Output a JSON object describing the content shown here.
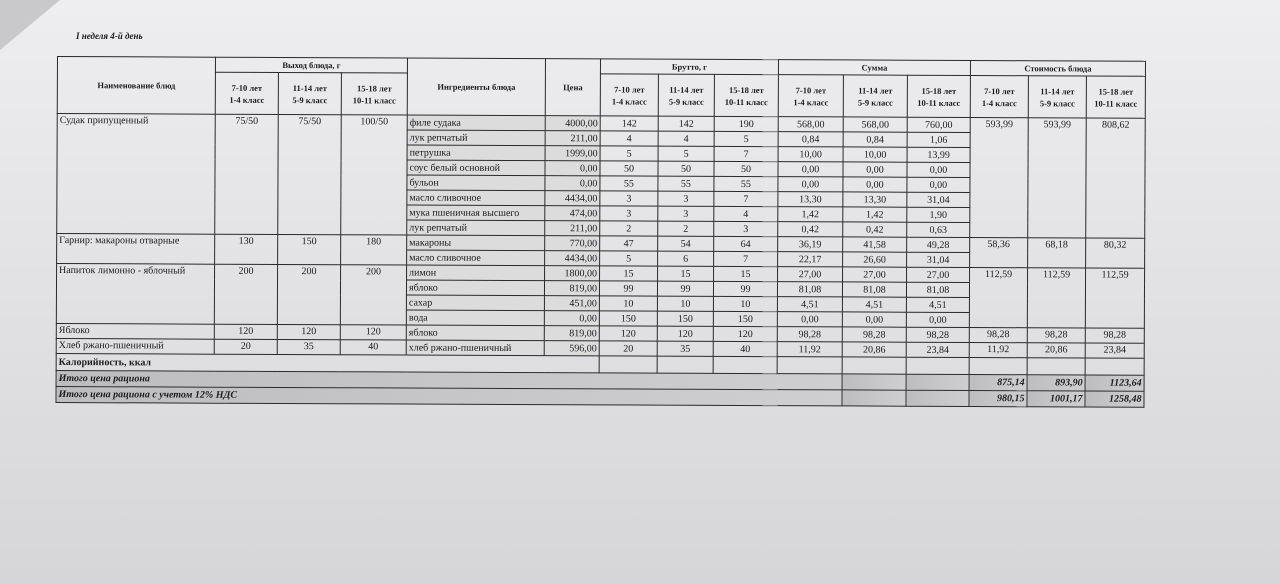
{
  "title": "I неделя 4-й день",
  "headers": {
    "dish_name": "Наименование блюд",
    "output_group": "Выход блюда, г",
    "ingredients": "Ингредиенты блюда",
    "price": "Цена",
    "brutto_group": "Брутто, г",
    "sum_group": "Сумма",
    "cost_group": "Стоимость блюда",
    "age_groups": [
      "7-10 лет\n1-4 класс",
      "11-14 лет\n5-9 класс",
      "15-18 лет\n10-11 класс"
    ]
  },
  "dishes": [
    {
      "name": "Судак припущенный",
      "output": [
        "75/50",
        "75/50",
        "100/50"
      ],
      "cost": [
        "593,99",
        "593,99",
        "808,62"
      ],
      "ingredients": [
        {
          "name": "филе судака",
          "price": "4000,00",
          "brutto": [
            "142",
            "142",
            "190"
          ],
          "sum": [
            "568,00",
            "568,00",
            "760,00"
          ]
        },
        {
          "name": "лук репчатый",
          "price": "211,00",
          "brutto": [
            "4",
            "4",
            "5"
          ],
          "sum": [
            "0,84",
            "0,84",
            "1,06"
          ]
        },
        {
          "name": "петрушка",
          "price": "1999,00",
          "brutto": [
            "5",
            "5",
            "7"
          ],
          "sum": [
            "10,00",
            "10,00",
            "13,99"
          ]
        },
        {
          "name": "соус белый основной",
          "price": "0,00",
          "brutto": [
            "50",
            "50",
            "50"
          ],
          "sum": [
            "0,00",
            "0,00",
            "0,00"
          ]
        },
        {
          "name": "бульон",
          "price": "0,00",
          "brutto": [
            "55",
            "55",
            "55"
          ],
          "sum": [
            "0,00",
            "0,00",
            "0,00"
          ]
        },
        {
          "name": "масло сливочное",
          "price": "4434,00",
          "brutto": [
            "3",
            "3",
            "7"
          ],
          "sum": [
            "13,30",
            "13,30",
            "31,04"
          ]
        },
        {
          "name": "мука пшеничная высшего",
          "price": "474,00",
          "brutto": [
            "3",
            "3",
            "4"
          ],
          "sum": [
            "1,42",
            "1,42",
            "1,90"
          ]
        },
        {
          "name": "лук репчатый",
          "price": "211,00",
          "brutto": [
            "2",
            "2",
            "3"
          ],
          "sum": [
            "0,42",
            "0,42",
            "0,63"
          ]
        }
      ]
    },
    {
      "name": "Гарнир: макароны отварные",
      "output": [
        "130",
        "150",
        "180"
      ],
      "cost": [
        "58,36",
        "68,18",
        "80,32"
      ],
      "ingredients": [
        {
          "name": "макароны",
          "price": "770,00",
          "brutto": [
            "47",
            "54",
            "64"
          ],
          "sum": [
            "36,19",
            "41,58",
            "49,28"
          ]
        },
        {
          "name": "масло сливочное",
          "price": "4434,00",
          "brutto": [
            "5",
            "6",
            "7"
          ],
          "sum": [
            "22,17",
            "26,60",
            "31,04"
          ]
        }
      ]
    },
    {
      "name": "Напиток лимонно - яблочный",
      "output": [
        "200",
        "200",
        "200"
      ],
      "cost": [
        "112,59",
        "112,59",
        "112,59"
      ],
      "ingredients": [
        {
          "name": "лимон",
          "price": "1800,00",
          "brutto": [
            "15",
            "15",
            "15"
          ],
          "sum": [
            "27,00",
            "27,00",
            "27,00"
          ]
        },
        {
          "name": "яблоко",
          "price": "819,00",
          "brutto": [
            "99",
            "99",
            "99"
          ],
          "sum": [
            "81,08",
            "81,08",
            "81,08"
          ]
        },
        {
          "name": "сахар",
          "price": "451,00",
          "brutto": [
            "10",
            "10",
            "10"
          ],
          "sum": [
            "4,51",
            "4,51",
            "4,51"
          ]
        },
        {
          "name": "вода",
          "price": "0,00",
          "brutto": [
            "150",
            "150",
            "150"
          ],
          "sum": [
            "0,00",
            "0,00",
            "0,00"
          ]
        }
      ]
    },
    {
      "name": "Яблоко",
      "output": [
        "120",
        "120",
        "120"
      ],
      "cost": [
        "98,28",
        "98,28",
        "98,28"
      ],
      "ingredients": [
        {
          "name": "яблоко",
          "price": "819,00",
          "brutto": [
            "120",
            "120",
            "120"
          ],
          "sum": [
            "98,28",
            "98,28",
            "98,28"
          ]
        }
      ]
    },
    {
      "name": "Хлеб ржано-пшеничный",
      "output": [
        "20",
        "35",
        "40"
      ],
      "cost": [
        "11,92",
        "20,86",
        "23,84"
      ],
      "ingredients": [
        {
          "name": "хлеб ржано-пшеничный",
          "price": "596,00",
          "brutto": [
            "20",
            "35",
            "40"
          ],
          "sum": [
            "11,92",
            "20,86",
            "23,84"
          ]
        }
      ]
    }
  ],
  "calories_label": "Калорийность, ккал",
  "total": {
    "label": "Итого цена рациона",
    "values": [
      "875,14",
      "893,90",
      "1123,64"
    ]
  },
  "total_vat": {
    "label": "Итого цена рациона с учетом 12% НДС",
    "values": [
      "980,15",
      "1001,17",
      "1258,48"
    ]
  }
}
